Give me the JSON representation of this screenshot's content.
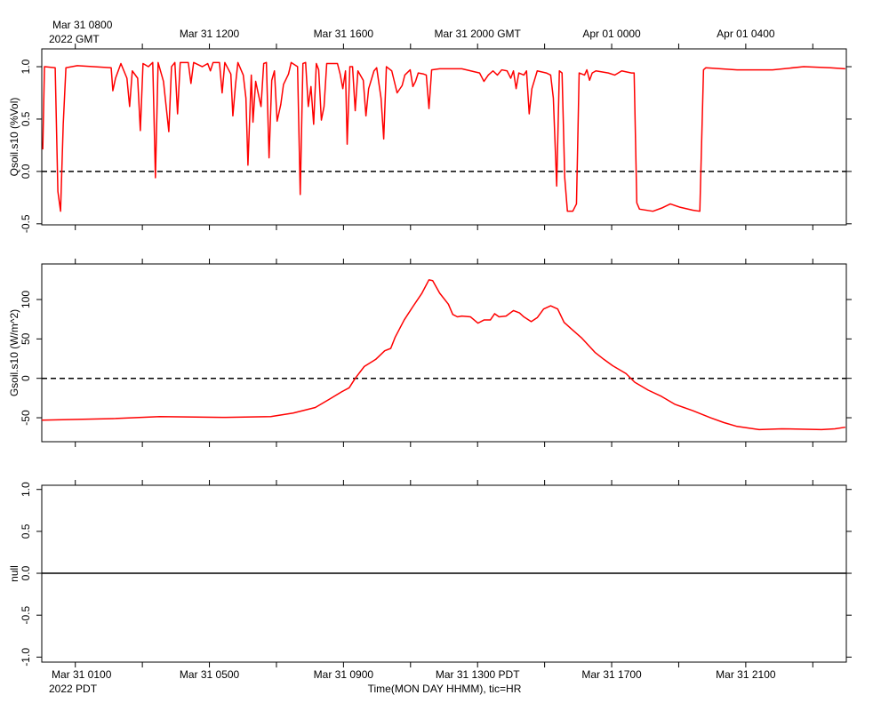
{
  "chart_data": [
    {
      "type": "line",
      "ylabel": "Qsoil.s10 (%Vol)",
      "xlim": [
        0,
        24
      ],
      "ylim": [
        -0.51,
        1.17
      ],
      "yticks": [
        {
          "value": -0.5,
          "label": "-0.5"
        },
        {
          "value": 0,
          "label": "0.0"
        },
        {
          "value": 0.5,
          "label": "0.5"
        },
        {
          "value": 1,
          "label": "1.0"
        }
      ],
      "refline": 0,
      "refline_style": "dashed",
      "x2ticks": [
        {
          "value": 1,
          "label": "Mar 31 0800"
        },
        {
          "value": 5,
          "label": "Mar 31 1200"
        },
        {
          "value": 9,
          "label": "Mar 31 1600"
        },
        {
          "value": 13,
          "label": "Mar 31 2000 GMT"
        },
        {
          "value": 17,
          "label": "Apr 01 0000"
        },
        {
          "value": 21,
          "label": "Apr 01 0400"
        }
      ],
      "x2_year_label": "2022 GMT",
      "x": [
        0.03,
        0.08,
        0.4,
        0.48,
        0.56,
        0.64,
        0.72,
        1.06,
        2.07,
        2.12,
        2.2,
        2.36,
        2.54,
        2.62,
        2.7,
        2.86,
        2.94,
        3.02,
        3.18,
        3.31,
        3.39,
        3.47,
        3.63,
        3.71,
        3.79,
        3.87,
        3.97,
        4.05,
        4.13,
        4.37,
        4.45,
        4.53,
        4.79,
        4.95,
        5.03,
        5.11,
        5.3,
        5.38,
        5.46,
        5.64,
        5.7,
        5.78,
        5.85,
        6.01,
        6.09,
        6.15,
        6.25,
        6.3,
        6.38,
        6.54,
        6.62,
        6.7,
        6.78,
        6.86,
        6.94,
        7.02,
        7.13,
        7.21,
        7.36,
        7.44,
        7.63,
        7.71,
        7.79,
        7.87,
        7.95,
        8.03,
        8.11,
        8.19,
        8.26,
        8.34,
        8.42,
        8.5,
        8.82,
        8.9,
        8.98,
        9.06,
        9.11,
        9.19,
        9.27,
        9.35,
        9.43,
        9.59,
        9.67,
        9.75,
        9.91,
        9.99,
        10.12,
        10.2,
        10.28,
        10.44,
        10.6,
        10.75,
        10.83,
        10.99,
        11.07,
        11.15,
        11.23,
        11.39,
        11.47,
        11.55,
        11.63,
        11.87,
        12.53,
        13.06,
        13.19,
        13.32,
        13.46,
        13.59,
        13.72,
        13.88,
        13.99,
        14.07,
        14.15,
        14.23,
        14.38,
        14.46,
        14.54,
        14.62,
        14.78,
        15.05,
        15.18,
        15.26,
        15.36,
        15.44,
        15.52,
        15.6,
        15.68,
        15.84,
        15.95,
        16.03,
        16.19,
        16.26,
        16.34,
        16.42,
        16.53,
        16.9,
        17.09,
        17.3,
        17.59,
        17.67,
        17.75,
        17.83,
        18.23,
        18.49,
        18.75,
        19.02,
        19.42,
        19.63,
        19.74,
        19.81,
        20.74,
        21.8,
        22.73,
        23.52,
        23.97
      ],
      "series": [
        {
          "color": "#ff0000",
          "values": [
            0.21,
            1.0,
            0.99,
            -0.19,
            -0.38,
            0.45,
            0.99,
            1.01,
            0.99,
            0.77,
            0.89,
            1.03,
            0.89,
            0.62,
            0.96,
            0.89,
            0.39,
            1.03,
            1.0,
            1.04,
            -0.06,
            1.04,
            0.86,
            0.62,
            0.38,
            1.0,
            1.04,
            0.55,
            1.04,
            1.04,
            0.84,
            1.04,
            1.0,
            1.03,
            0.96,
            1.04,
            1.04,
            0.75,
            1.04,
            0.93,
            0.53,
            0.83,
            1.04,
            0.92,
            0.7,
            0.06,
            0.92,
            0.47,
            0.86,
            0.62,
            1.03,
            1.04,
            0.13,
            0.87,
            0.96,
            0.48,
            0.64,
            0.83,
            0.93,
            1.04,
            1.0,
            -0.22,
            1.03,
            1.04,
            0.62,
            0.81,
            0.45,
            1.03,
            0.97,
            0.49,
            0.62,
            1.03,
            1.03,
            0.93,
            0.79,
            0.96,
            0.26,
            1.0,
            1.0,
            0.58,
            0.96,
            0.87,
            0.53,
            0.79,
            0.96,
            0.99,
            0.7,
            0.31,
            1.0,
            0.96,
            0.75,
            0.82,
            0.92,
            0.97,
            0.81,
            0.86,
            0.94,
            0.93,
            0.92,
            0.6,
            0.97,
            0.98,
            0.98,
            0.94,
            0.86,
            0.92,
            0.96,
            0.92,
            0.97,
            0.96,
            0.89,
            0.96,
            0.79,
            0.94,
            0.92,
            0.96,
            0.55,
            0.79,
            0.96,
            0.94,
            0.92,
            0.7,
            -0.14,
            0.96,
            0.94,
            -0.06,
            -0.38,
            -0.38,
            -0.31,
            0.94,
            0.92,
            0.97,
            0.87,
            0.94,
            0.96,
            0.94,
            0.92,
            0.96,
            0.94,
            0.94,
            -0.3,
            -0.36,
            -0.38,
            -0.35,
            -0.31,
            -0.34,
            -0.37,
            -0.38,
            0.97,
            0.99,
            0.97,
            0.97,
            1.0,
            0.99,
            0.98
          ]
        }
      ]
    },
    {
      "type": "line",
      "ylabel": "Gsoil.s10 (W/m^2)",
      "xlim": [
        0,
        24
      ],
      "ylim": [
        -80.4,
        145.1
      ],
      "yticks": [
        -50,
        0,
        50,
        100
      ],
      "refline": 0,
      "refline_style": "dashed",
      "x": [
        0,
        2.2,
        3.52,
        5.38,
        6.83,
        7.5,
        8.16,
        8.56,
        8.95,
        9.17,
        9.35,
        9.62,
        9.96,
        10.23,
        10.41,
        10.54,
        10.81,
        11.07,
        11.34,
        11.55,
        11.66,
        11.87,
        12.13,
        12.26,
        12.4,
        12.53,
        12.79,
        13.01,
        13.19,
        13.38,
        13.51,
        13.64,
        13.85,
        14.07,
        14.25,
        14.38,
        14.6,
        14.78,
        14.97,
        15.18,
        15.39,
        15.58,
        15.79,
        16.11,
        16.5,
        16.77,
        17.03,
        17.43,
        17.69,
        18.09,
        18.49,
        18.89,
        19.42,
        19.95,
        20.34,
        20.74,
        21.4,
        22.07,
        23.26,
        23.66,
        23.97
      ],
      "series": [
        {
          "color": "#ff0000",
          "values": [
            -53,
            -51,
            -48.5,
            -49.6,
            -48.5,
            -44,
            -37,
            -27,
            -17,
            -12,
            0,
            15,
            24,
            35,
            38,
            52,
            74,
            91,
            108,
            125,
            124,
            108,
            94,
            81,
            78,
            79,
            78,
            70,
            74,
            74,
            82,
            78,
            79,
            86,
            83,
            78,
            72,
            77,
            88,
            92,
            88,
            71,
            63,
            51,
            33,
            24,
            16,
            6,
            -5,
            -15,
            -23,
            -33,
            -41,
            -50,
            -56,
            -61,
            -65,
            -64,
            -65,
            -64,
            -62
          ]
        }
      ]
    },
    {
      "type": "line",
      "ylabel": "null",
      "xlim": [
        0,
        24
      ],
      "ylim": [
        -1.06,
        1.05
      ],
      "yticks": [
        {
          "value": -1,
          "label": "-1.0"
        },
        {
          "value": -0.5,
          "label": "-0.5"
        },
        {
          "value": 0,
          "label": "0.0"
        },
        {
          "value": 0.5,
          "label": "0.5"
        },
        {
          "value": 1,
          "label": "1.0"
        }
      ],
      "refline": 0,
      "refline_style": "solid",
      "xticks": [
        {
          "value": 1,
          "label": "Mar 31 0100"
        },
        {
          "value": 5,
          "label": "Mar 31 0500"
        },
        {
          "value": 9,
          "label": "Mar 31 0900"
        },
        {
          "value": 13,
          "label": "Mar 31 1300 PDT"
        },
        {
          "value": 17,
          "label": "Mar 31 1700"
        },
        {
          "value": 21,
          "label": "Mar 31 2100"
        }
      ],
      "xminor": [
        3,
        7,
        11,
        15,
        19,
        23
      ],
      "x_year_label": "2022 PDT",
      "xlabel": "Time(MON DAY HHMM), tic=HR",
      "x": [],
      "series": []
    }
  ]
}
